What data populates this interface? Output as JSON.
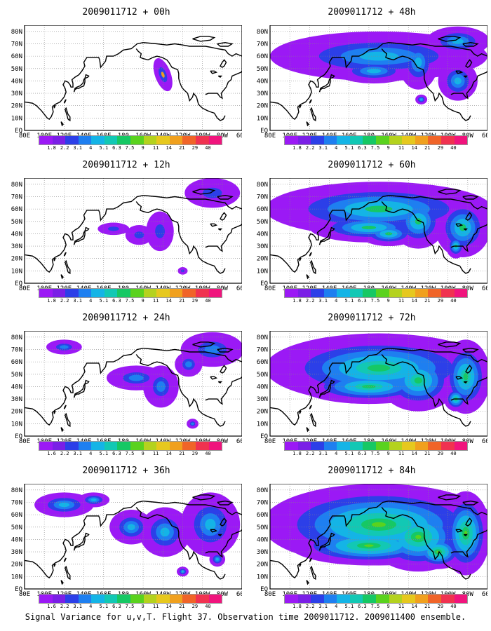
{
  "panels": [
    {
      "title": "2009011712 + 00h",
      "intensity": 0
    },
    {
      "title": "2009011712 + 48h",
      "intensity": 4
    },
    {
      "title": "2009011712 + 12h",
      "intensity": 1
    },
    {
      "title": "2009011712 + 60h",
      "intensity": 5
    },
    {
      "title": "2009011712 + 24h",
      "intensity": 2
    },
    {
      "title": "2009011712 + 72h",
      "intensity": 6
    },
    {
      "title": "2009011712 + 36h",
      "intensity": 3
    },
    {
      "title": "2009011712 + 84h",
      "intensity": 7
    }
  ],
  "lat_labels": [
    "80N",
    "70N",
    "60N",
    "50N",
    "40N",
    "30N",
    "20N",
    "10N",
    "EQ"
  ],
  "lon_labels": [
    "80E",
    "100E",
    "120E",
    "140E",
    "160E",
    "180",
    "160W",
    "140W",
    "120W",
    "100W",
    "80W",
    "60W"
  ],
  "colorbar": {
    "colors": [
      "#9b19f5",
      "#7a1fe6",
      "#2c3fe8",
      "#1e7ff0",
      "#14b4e6",
      "#12c8b4",
      "#16c864",
      "#5ad21e",
      "#b4d21e",
      "#e6c81e",
      "#f0a01e",
      "#f06428",
      "#f03250",
      "#f0147d"
    ],
    "ticks": [
      "1.8",
      "2.2",
      "3.1",
      "4",
      "5.1",
      "6.3",
      "7.5",
      "9",
      "11",
      "14",
      "21",
      "29",
      "40"
    ],
    "ticks_alt": [
      "1.6",
      "2.2",
      "3.1",
      "4",
      "5.1",
      "6.3",
      "7.5",
      "9",
      "11",
      "14",
      "21",
      "29",
      "40"
    ]
  },
  "footer": "Signal Variance for u,v,T. Flight 37. Observation time 2009011712. 2009011400 ensemble."
}
